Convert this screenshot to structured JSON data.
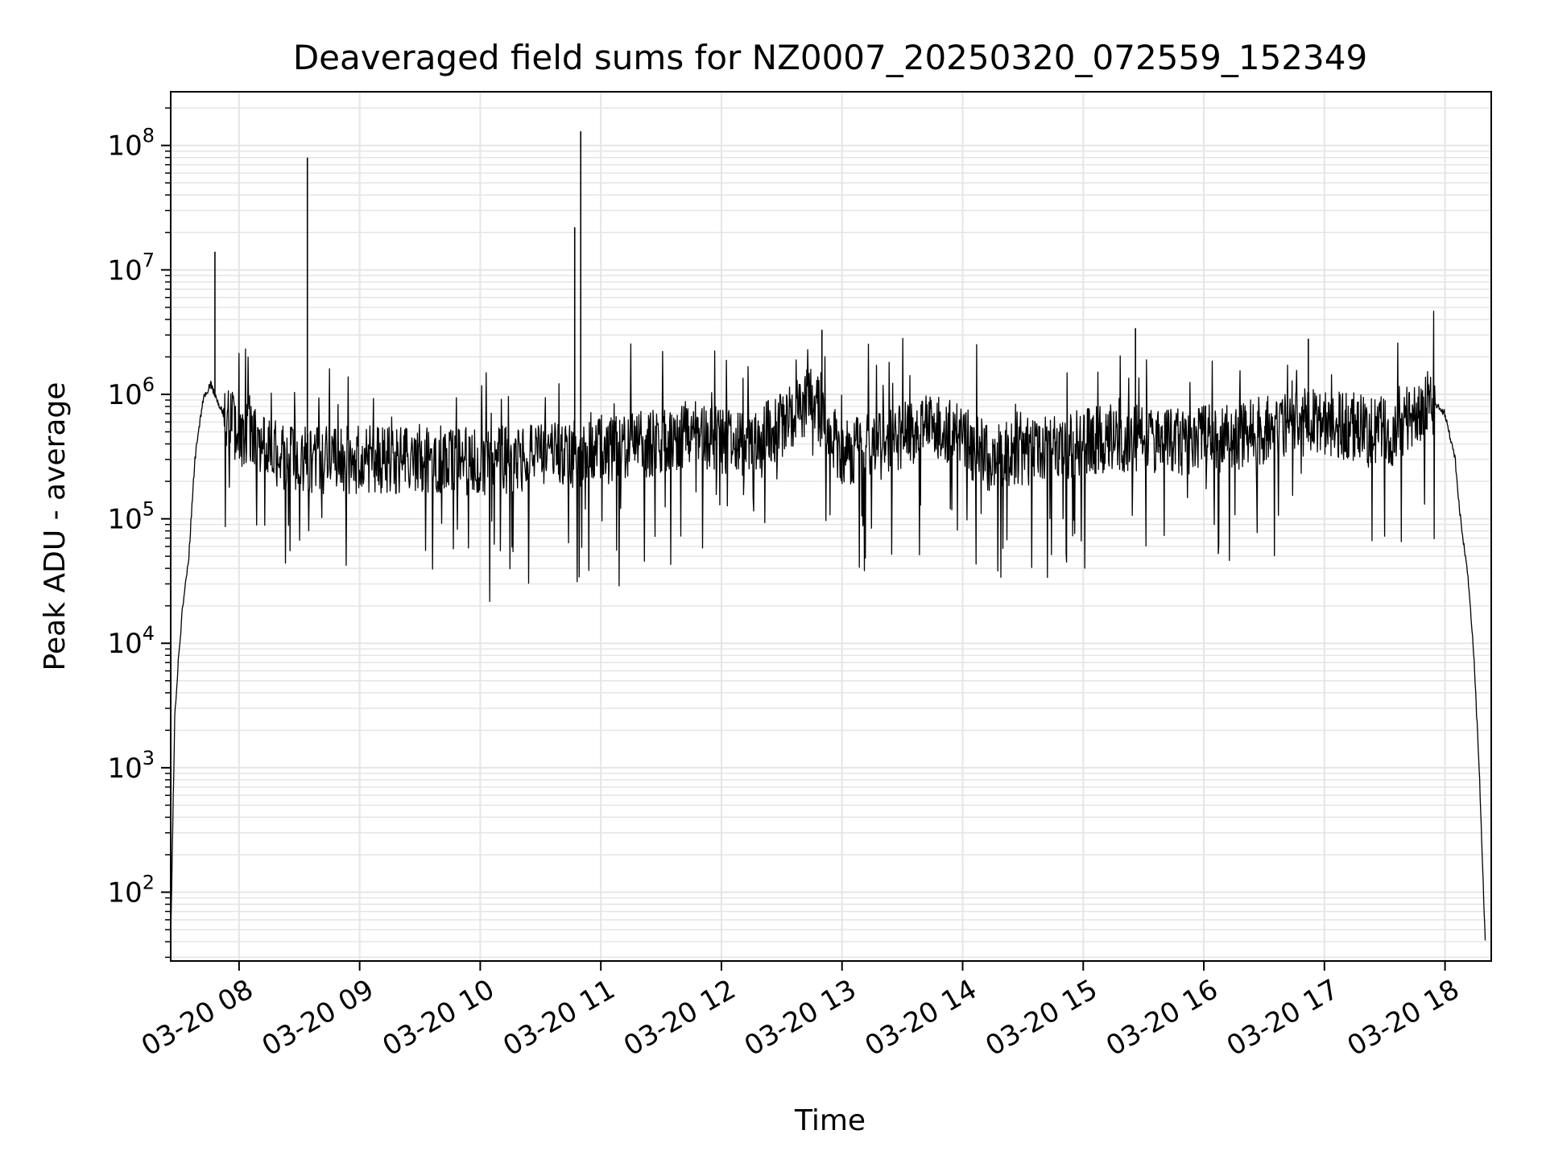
{
  "chart_data": {
    "type": "line",
    "title": "Deaveraged field sums for NZ0007_20250320_072559_152349",
    "xlabel": "Time",
    "ylabel": "Peak ADU - average",
    "y_scale": "log",
    "grid": true,
    "legend": "none",
    "line_color": "#000000",
    "grid_color": "#e5e5e5",
    "xlim": [
      "03-20 07:26",
      "03-20 18:23"
    ],
    "ylim": [
      28,
      270000000
    ],
    "x_ticks": [
      "03-20 08",
      "03-20 09",
      "03-20 10",
      "03-20 11",
      "03-20 12",
      "03-20 13",
      "03-20 14",
      "03-20 15",
      "03-20 16",
      "03-20 17",
      "03-20 18"
    ],
    "y_ticks": [
      {
        "value": 100,
        "base": "10",
        "exp": "2"
      },
      {
        "value": 1000,
        "base": "10",
        "exp": "3"
      },
      {
        "value": 10000,
        "base": "10",
        "exp": "4"
      },
      {
        "value": 100000,
        "base": "10",
        "exp": "5"
      },
      {
        "value": 1000000,
        "base": "10",
        "exp": "6"
      },
      {
        "value": 10000000,
        "base": "10",
        "exp": "7"
      },
      {
        "value": 100000000,
        "base": "10",
        "exp": "8"
      }
    ],
    "series": [
      {
        "x": [
          "03-20 07:26",
          "03-20 07:28",
          "03-20 07:30",
          "03-20 07:32",
          "03-20 07:35",
          "03-20 07:38",
          "03-20 07:42",
          "03-20 07:46",
          "03-20 07:50",
          "03-20 07:55",
          "03-20 08:00",
          "03-20 08:10",
          "03-20 08:20",
          "03-20 08:35",
          "03-20 09:00",
          "03-20 09:30",
          "03-20 10:00",
          "03-20 10:30",
          "03-20 10:50",
          "03-20 11:15",
          "03-20 11:45",
          "03-20 12:15",
          "03-20 12:45",
          "03-20 13:00",
          "03-20 13:20",
          "03-20 13:45",
          "03-20 14:15",
          "03-20 14:45",
          "03-20 15:15",
          "03-20 15:45",
          "03-20 16:15",
          "03-20 16:45",
          "03-20 17:15",
          "03-20 17:35",
          "03-20 17:52",
          "03-20 18:00",
          "03-20 18:05",
          "03-20 18:08",
          "03-20 18:11",
          "03-20 18:14",
          "03-20 18:17",
          "03-20 18:20"
        ],
        "y": [
          40,
          2500,
          8000,
          20000,
          50000,
          300000,
          900000,
          1200000,
          800000,
          600000,
          500000,
          400000,
          320000,
          300000,
          300000,
          300000,
          290000,
          310000,
          330000,
          380000,
          480000,
          380000,
          900000,
          350000,
          380000,
          600000,
          300000,
          380000,
          450000,
          420000,
          450000,
          600000,
          550000,
          500000,
          900000,
          700000,
          300000,
          90000,
          40000,
          10000,
          1000,
          40
        ]
      }
    ],
    "spikes": [
      {
        "x": "03-20 07:48",
        "y": 14000000
      },
      {
        "x": "03-20 08:34",
        "y": 80000000
      },
      {
        "x": "03-20 10:47",
        "y": 22000000
      },
      {
        "x": "03-20 10:50",
        "y": 130000000
      },
      {
        "x": "03-20 12:50",
        "y": 3300000
      },
      {
        "x": "03-20 15:26",
        "y": 3400000
      },
      {
        "x": "03-20 16:52",
        "y": 2800000
      }
    ]
  }
}
